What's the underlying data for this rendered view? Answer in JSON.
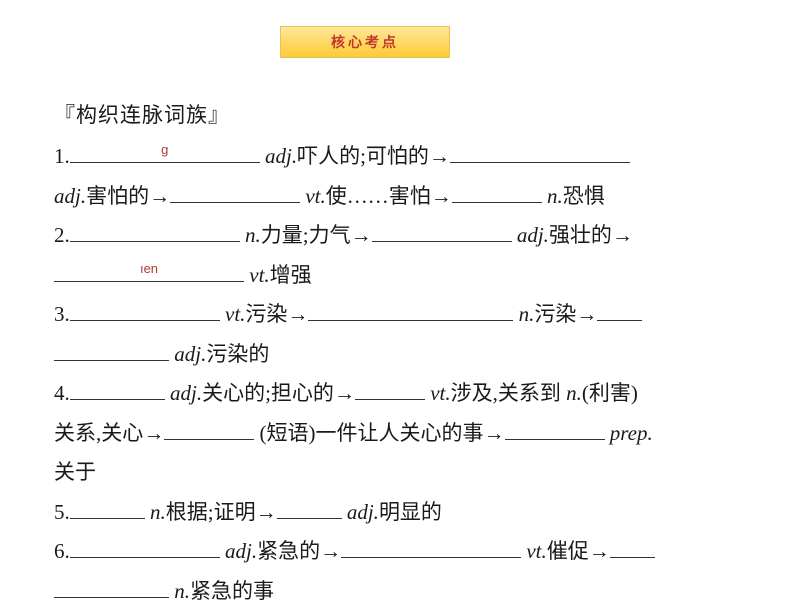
{
  "header": {
    "badge": "核心考点"
  },
  "section_title": "『构织连脉词族』",
  "items": [
    {
      "num": "1.",
      "parts": [
        {
          "blank_width": 190,
          "hint": "g"
        },
        {
          "text": " ",
          "italic": false
        },
        {
          "text": "adj.",
          "italic": true
        },
        {
          "text": "吓人的;可怕的",
          "italic": false
        },
        {
          "arrow": "→"
        },
        {
          "blank_width": 180,
          "hint": ""
        },
        {
          "text": " ",
          "italic": false
        },
        {
          "break": true
        },
        {
          "text": "adj.",
          "italic": true
        },
        {
          "text": "害怕的",
          "italic": false
        },
        {
          "arrow": "→"
        },
        {
          "blank_width": 130,
          "hint": ""
        },
        {
          "text": " ",
          "italic": false
        },
        {
          "text": "vt.",
          "italic": true
        },
        {
          "text": "使……害怕",
          "italic": false
        },
        {
          "arrow": "→"
        },
        {
          "blank_width": 90,
          "hint": ""
        },
        {
          "text": "  ",
          "italic": false
        },
        {
          "text": "n.",
          "italic": true
        },
        {
          "text": "恐惧",
          "italic": false
        }
      ]
    },
    {
      "num": "2.",
      "parts": [
        {
          "blank_width": 170,
          "hint": ""
        },
        {
          "text": " ",
          "italic": false
        },
        {
          "text": "n.",
          "italic": true
        },
        {
          "text": "力量;力气",
          "italic": false
        },
        {
          "arrow": "→"
        },
        {
          "blank_width": 140,
          "hint": ""
        },
        {
          "text": " ",
          "italic": false
        },
        {
          "text": "adj.",
          "italic": true
        },
        {
          "text": "强壮的",
          "italic": false
        },
        {
          "arrow": "→"
        },
        {
          "break": true
        },
        {
          "blank_width": 190,
          "hint": "ıen"
        },
        {
          "text": " ",
          "italic": false
        },
        {
          "text": "vt.",
          "italic": true
        },
        {
          "text": "增强",
          "italic": false
        }
      ]
    },
    {
      "num": "3.",
      "parts": [
        {
          "blank_width": 150,
          "hint": ""
        },
        {
          "text": " ",
          "italic": false
        },
        {
          "text": "vt.",
          "italic": true
        },
        {
          "text": "污染",
          "italic": false
        },
        {
          "arrow": "→"
        },
        {
          "blank_width": 205,
          "hint": ""
        },
        {
          "text": "  ",
          "italic": false
        },
        {
          "text": "n.",
          "italic": true
        },
        {
          "text": "污染",
          "italic": false
        },
        {
          "arrow": "→"
        },
        {
          "blank_width": 45,
          "hint": ""
        },
        {
          "break": true
        },
        {
          "blank_width": 115,
          "hint": ""
        },
        {
          "text": "  ",
          "italic": false
        },
        {
          "text": "adj.",
          "italic": true
        },
        {
          "text": "污染的",
          "italic": false
        }
      ]
    },
    {
      "num": "4.",
      "parts": [
        {
          "blank_width": 95,
          "hint": ""
        },
        {
          "text": " ",
          "italic": false
        },
        {
          "text": "adj.",
          "italic": true
        },
        {
          "text": "关心的;担心的",
          "italic": false
        },
        {
          "arrow": "→"
        },
        {
          "blank_width": 70,
          "hint": ""
        },
        {
          "text": " ",
          "italic": false
        },
        {
          "text": "vt.",
          "italic": true
        },
        {
          "text": "涉及,关系到   ",
          "italic": false
        },
        {
          "text": "n.",
          "italic": true
        },
        {
          "text": "(利害)",
          "italic": false
        },
        {
          "break": true
        },
        {
          "text": "关系,关心",
          "italic": false
        },
        {
          "arrow": "→"
        },
        {
          "blank_width": 90,
          "hint": ""
        },
        {
          "text": " (短语)一件让人关心的事",
          "italic": false
        },
        {
          "arrow": "→"
        },
        {
          "blank_width": 100,
          "hint": ""
        },
        {
          "text": " ",
          "italic": false
        },
        {
          "text": "prep.",
          "italic": true
        },
        {
          "break": true
        },
        {
          "text": "关于",
          "italic": false
        }
      ]
    },
    {
      "num": "5.",
      "parts": [
        {
          "blank_width": 75,
          "hint": ""
        },
        {
          "text": " ",
          "italic": false
        },
        {
          "text": "n.",
          "italic": true
        },
        {
          "text": "根据;证明",
          "italic": false
        },
        {
          "arrow": "→"
        },
        {
          "blank_width": 65,
          "hint": ""
        },
        {
          "text": " ",
          "italic": false
        },
        {
          "text": "adj.",
          "italic": true
        },
        {
          "text": "明显的",
          "italic": false
        }
      ]
    },
    {
      "num": "6.",
      "parts": [
        {
          "blank_width": 150,
          "hint": ""
        },
        {
          "text": " ",
          "italic": false
        },
        {
          "text": "adj.",
          "italic": true
        },
        {
          "text": "紧急的",
          "italic": false
        },
        {
          "arrow": "→"
        },
        {
          "blank_width": 180,
          "hint": ""
        },
        {
          "text": "  ",
          "italic": false
        },
        {
          "text": "vt.",
          "italic": true
        },
        {
          "text": "催促",
          "italic": false
        },
        {
          "arrow": "→"
        },
        {
          "blank_width": 45,
          "hint": ""
        },
        {
          "break": true
        },
        {
          "blank_width": 115,
          "hint": ""
        },
        {
          "text": "  ",
          "italic": false
        },
        {
          "text": "n.",
          "italic": true
        },
        {
          "text": "紧急的事",
          "italic": false
        }
      ]
    }
  ],
  "colors": {
    "badge_text": "#c0392b",
    "hint_text": "#b23a2e",
    "body_text": "#1a1a1a",
    "background": "#ffffff"
  }
}
